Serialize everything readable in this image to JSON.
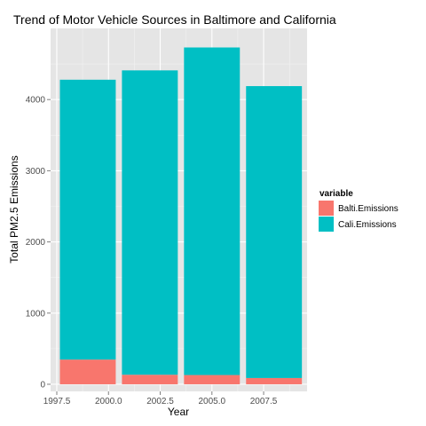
{
  "chart_data": {
    "type": "bar",
    "stacked": true,
    "title": "Trend of Motor Vehicle Sources in Baltimore and California",
    "xlabel": "Year",
    "ylabel": "Total PM2.5 Emissions",
    "x": [
      1999,
      2002,
      2005,
      2008
    ],
    "xlim": [
      1997.2,
      2009.6
    ],
    "ylim": [
      -100,
      5000
    ],
    "x_ticks": [
      1997.5,
      2000.0,
      2002.5,
      2005.0,
      2007.5
    ],
    "x_tick_labels": [
      "1997.5",
      "2000.0",
      "2002.5",
      "2005.0",
      "2007.5"
    ],
    "y_ticks": [
      0,
      1000,
      2000,
      3000,
      4000
    ],
    "y_tick_labels": [
      "0",
      "1000",
      "2000",
      "3000",
      "4000"
    ],
    "grid": true,
    "legend": {
      "title": "variable",
      "position": "right"
    },
    "series": [
      {
        "name": "Balti.Emissions",
        "color": "#f8766d",
        "values": [
          347,
          134,
          130,
          88
        ]
      },
      {
        "name": "Cali.Emissions",
        "color": "#00bfc4",
        "values": [
          3932,
          4276,
          4602,
          4101
        ]
      }
    ]
  }
}
